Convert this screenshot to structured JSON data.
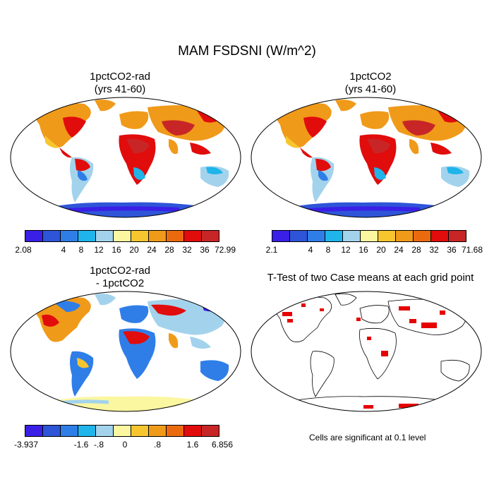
{
  "figure_title": "MAM FSDSNI (W/m^2)",
  "panels": [
    {
      "title_line1": "1pctCO2-rad",
      "title_line2": "(yrs 41-60)"
    },
    {
      "title_line1": "1pctCO2",
      "title_line2": "(yrs 41-60)"
    },
    {
      "title_line1": "1pctCO2-rad",
      "title_line2": "- 1pctCO2"
    },
    {
      "title_line1": "T-Test of two Case means at each grid point",
      "title_line2": ""
    }
  ],
  "colorbars": [
    {
      "labels": [
        "2.08",
        "4",
        "8",
        "12",
        "16",
        "20",
        "24",
        "28",
        "32",
        "36",
        "72.99"
      ],
      "colors": [
        "#3a1fe6",
        "#2e55d8",
        "#2f7ee8",
        "#1fb4ea",
        "#a3d3ec",
        "#fbf6a0",
        "#f7c62f",
        "#f09a1a",
        "#ec6a0e",
        "#e10c0c",
        "#c82626"
      ]
    },
    {
      "labels": [
        "2.1",
        "4",
        "8",
        "12",
        "16",
        "20",
        "24",
        "28",
        "32",
        "36",
        "71.68"
      ],
      "colors": [
        "#3a1fe6",
        "#2e55d8",
        "#2f7ee8",
        "#1fb4ea",
        "#a3d3ec",
        "#fbf6a0",
        "#f7c62f",
        "#f09a1a",
        "#ec6a0e",
        "#e10c0c",
        "#c82626"
      ]
    },
    {
      "labels": [
        "-3.937",
        "-1.6",
        "-.8",
        "0",
        ".8",
        "1.6",
        "6.856"
      ],
      "colors": [
        "#3a1fe6",
        "#2e55d8",
        "#2f7ee8",
        "#1fb4ea",
        "#a3d3ec",
        "#fbf6a0",
        "#f7c62f",
        "#f09a1a",
        "#ec6a0e",
        "#e10c0c",
        "#c82626"
      ]
    }
  ],
  "significance_note": "Cells are significant at 0.1 level",
  "colors": {
    "significant": "#e60000",
    "border": "#000000"
  }
}
